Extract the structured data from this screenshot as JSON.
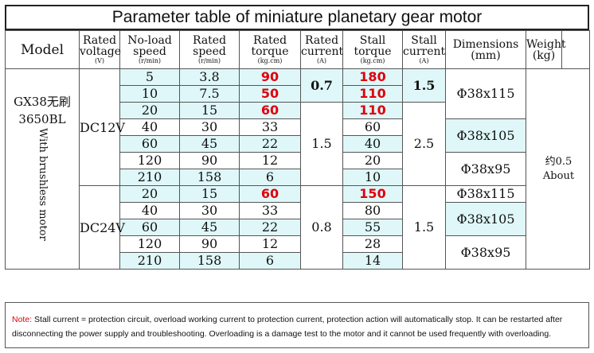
{
  "title": "Parameter table of miniature planetary gear motor",
  "headers": {
    "model": "Model",
    "rated_voltage": "Rated voltage",
    "rated_voltage_unit": "(V)",
    "no_load_speed": "No-load speed",
    "no_load_speed_unit": "(r/min)",
    "rated_speed": "Rated speed",
    "rated_speed_unit": "(r/min)",
    "rated_torque": "Rated torque",
    "rated_torque_unit": "(kg.cm)",
    "rated_current": "Rated current",
    "rated_current_unit": "(A)",
    "stall_torque": "Stall torque",
    "stall_torque_unit": "(kg.cm)",
    "stall_current": "Stall current",
    "stall_current_unit": "(A)",
    "dimensions": "Dimensions",
    "dimensions_unit": "(mm)",
    "weight": "Weight",
    "weight_unit": "(kg)"
  },
  "model": {
    "name_line1": "GX38无刷",
    "name_line2": "3650BL",
    "vertical": "With brushless motor"
  },
  "weight": {
    "line1": "约0.5",
    "line2": "About"
  },
  "voltages": [
    "DC12V",
    "DC24V"
  ],
  "rows": [
    {
      "no_load": "5",
      "rated_speed": "3.8",
      "rated_torque": "90",
      "stall_torque": "180"
    },
    {
      "no_load": "10",
      "rated_speed": "7.5",
      "rated_torque": "50",
      "stall_torque": "110"
    },
    {
      "no_load": "20",
      "rated_speed": "15",
      "rated_torque": "60",
      "stall_torque": "110"
    },
    {
      "no_load": "40",
      "rated_speed": "30",
      "rated_torque": "33",
      "stall_torque": "60"
    },
    {
      "no_load": "60",
      "rated_speed": "45",
      "rated_torque": "22",
      "stall_torque": "40"
    },
    {
      "no_load": "120",
      "rated_speed": "90",
      "rated_torque": "12",
      "stall_torque": "20"
    },
    {
      "no_load": "210",
      "rated_speed": "158",
      "rated_torque": "6",
      "stall_torque": "10"
    },
    {
      "no_load": "20",
      "rated_speed": "15",
      "rated_torque": "60",
      "stall_torque": "150"
    },
    {
      "no_load": "40",
      "rated_speed": "30",
      "rated_torque": "33",
      "stall_torque": "80"
    },
    {
      "no_load": "60",
      "rated_speed": "45",
      "rated_torque": "22",
      "stall_torque": "55"
    },
    {
      "no_load": "120",
      "rated_speed": "90",
      "rated_torque": "12",
      "stall_torque": "28"
    },
    {
      "no_load": "210",
      "rated_speed": "158",
      "rated_torque": "6",
      "stall_torque": "14"
    }
  ],
  "rated_current": [
    "0.7",
    "1.5",
    "0.8"
  ],
  "stall_current": [
    "1.5",
    "2.5",
    "1.5"
  ],
  "dimensions": [
    "Φ38x115",
    "Φ38x105",
    "Φ38x95",
    "Φ38x115",
    "Φ38x105",
    "Φ38x95"
  ],
  "note": {
    "label": "Note:",
    "text": "Stall current = protection circuit, overload working current to protection current, protection action will automatically stop. It can be restarted after disconnecting the power supply and troubleshooting. Overloading is a damage test to the motor and it cannot be used frequently with overloading."
  },
  "colors": {
    "highlight_red": "#e0000d",
    "cell_cyan": "#dff7f8",
    "border": "#555555"
  }
}
